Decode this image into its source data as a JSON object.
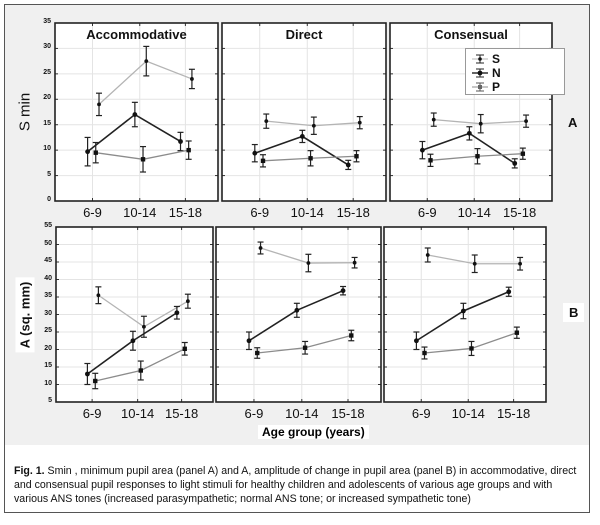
{
  "figure": {
    "caption_label": "Fig. 1.",
    "caption_text": " Smin , minimum pupil area (panel A)  and A, amplitude of change in pupil area (panel B) in accommodative, direct and consensual pupil responses to light stimuli for healthy children and adolescents of various age groups and with various ANS tones (increased parasympathetic; normal ANS tone; or increased sympathetic tone)",
    "x_axis_title": "Age group (years)",
    "panel_letters": [
      "A",
      "B"
    ],
    "colors": {
      "S": "#b4b4b4",
      "N": "#222222",
      "P": "#8c8c8c"
    }
  },
  "chart_data": [
    {
      "type": "line",
      "panel": "A",
      "ylabel": "S min",
      "ylim": [
        0,
        35
      ],
      "yticks": [
        "0",
        "5",
        "10",
        "15",
        "20",
        "25",
        "30",
        "35"
      ],
      "categories": [
        "6-9",
        "10-14",
        "15-18"
      ],
      "legend": {
        "entries": [
          "S",
          "N",
          "P"
        ],
        "placement": "top-right"
      },
      "subplots": [
        {
          "title": "Accommodative",
          "series": [
            {
              "name": "S",
              "values": [
                19,
                27.5,
                24
              ],
              "errors": [
                2.2,
                2.9,
                1.9
              ]
            },
            {
              "name": "N",
              "values": [
                9.7,
                17,
                11.7
              ],
              "errors": [
                2.8,
                2.4,
                1.8
              ]
            },
            {
              "name": "P",
              "values": [
                9.5,
                8.2,
                10
              ],
              "errors": [
                2,
                2.5,
                1.8
              ]
            }
          ]
        },
        {
          "title": "Direct",
          "series": [
            {
              "name": "S",
              "values": [
                15.7,
                14.8,
                15.4
              ],
              "errors": [
                1.4,
                1.7,
                1.2
              ]
            },
            {
              "name": "N",
              "values": [
                9.4,
                12.7,
                7.1
              ],
              "errors": [
                1.7,
                1.2,
                0.9
              ]
            },
            {
              "name": "P",
              "values": [
                7.9,
                8.4,
                8.8
              ],
              "errors": [
                1.2,
                1.5,
                1.1
              ]
            }
          ]
        },
        {
          "title": "Consensual",
          "series": [
            {
              "name": "S",
              "values": [
                16,
                15.2,
                15.7
              ],
              "errors": [
                1.3,
                1.8,
                1.2
              ]
            },
            {
              "name": "N",
              "values": [
                10,
                13.3,
                7.4
              ],
              "errors": [
                1.7,
                1.3,
                0.9
              ]
            },
            {
              "name": "P",
              "values": [
                8,
                8.8,
                9.3
              ],
              "errors": [
                1.2,
                1.5,
                1.1
              ]
            }
          ]
        }
      ]
    },
    {
      "type": "line",
      "panel": "B",
      "ylabel": "A (sq. mm)",
      "ylim": [
        5,
        55
      ],
      "yticks": [
        "5",
        "10",
        "15",
        "20",
        "25",
        "30",
        "35",
        "40",
        "45",
        "50",
        "55"
      ],
      "categories": [
        "6-9",
        "10-14",
        "15-18"
      ],
      "subplots": [
        {
          "title": "",
          "series": [
            {
              "name": "S",
              "values": [
                35.5,
                26.5,
                33.8
              ],
              "errors": [
                2.4,
                3,
                2
              ]
            },
            {
              "name": "N",
              "values": [
                13,
                22.5,
                30.5
              ],
              "errors": [
                3,
                2.7,
                1.8
              ]
            },
            {
              "name": "P",
              "values": [
                11,
                14,
                20.2
              ],
              "errors": [
                2.2,
                2.7,
                1.8
              ]
            }
          ]
        },
        {
          "title": "",
          "series": [
            {
              "name": "S",
              "values": [
                49,
                44.7,
                44.8
              ],
              "errors": [
                1.7,
                2.5,
                1.5
              ]
            },
            {
              "name": "N",
              "values": [
                22.5,
                31.2,
                36.8
              ],
              "errors": [
                2.5,
                2,
                1.2
              ]
            },
            {
              "name": "P",
              "values": [
                19,
                20.5,
                24
              ],
              "errors": [
                1.5,
                1.8,
                1.5
              ]
            }
          ]
        },
        {
          "title": "",
          "series": [
            {
              "name": "S",
              "values": [
                47,
                44.5,
                44.5
              ],
              "errors": [
                2,
                2.5,
                1.8
              ]
            },
            {
              "name": "N",
              "values": [
                22.5,
                31,
                36.5
              ],
              "errors": [
                2.5,
                2.2,
                1.3
              ]
            },
            {
              "name": "P",
              "values": [
                19,
                20.3,
                24.8
              ],
              "errors": [
                1.7,
                2,
                1.6
              ]
            }
          ]
        }
      ]
    }
  ]
}
